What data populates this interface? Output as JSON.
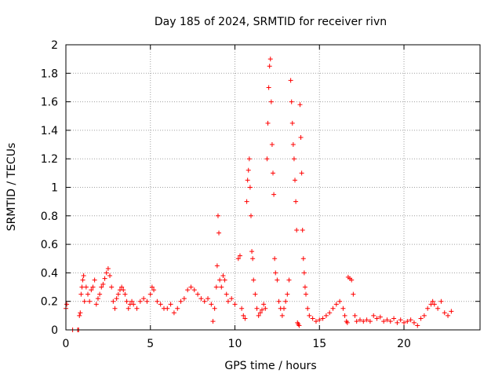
{
  "chart_data": {
    "type": "scatter",
    "title": "Day 185 of 2024, SRMTID for receiver rivn",
    "xlabel": "GPS time / hours",
    "ylabel": "SRMTID / TECUs",
    "xlim": [
      0,
      24.5
    ],
    "ylim": [
      0,
      2
    ],
    "x_ticks": [
      0,
      5,
      10,
      15,
      20
    ],
    "y_ticks": [
      0,
      0.2,
      0.4,
      0.6,
      0.8,
      1,
      1.2,
      1.4,
      1.6,
      1.8,
      2
    ],
    "x_tick_labels": [
      "0",
      "5",
      "10",
      "15",
      "20"
    ],
    "y_tick_labels": [
      "0",
      "0.2",
      "0.4",
      "0.6",
      "0.8",
      "1",
      "1.2",
      "1.4",
      "1.6",
      "1.8",
      "2"
    ],
    "grid": true,
    "marker": "+",
    "series": [
      {
        "name": "SRMTID",
        "color": "#ff0000",
        "points": [
          [
            0.0,
            0.15
          ],
          [
            0.05,
            0.18
          ],
          [
            0.4,
            0.0
          ],
          [
            0.7,
            0.0
          ],
          [
            0.75,
            0.0
          ],
          [
            0.8,
            0.1
          ],
          [
            0.85,
            0.12
          ],
          [
            0.9,
            0.25
          ],
          [
            0.95,
            0.3
          ],
          [
            1.0,
            0.35
          ],
          [
            1.05,
            0.38
          ],
          [
            1.1,
            0.2
          ],
          [
            1.2,
            0.3
          ],
          [
            1.3,
            0.25
          ],
          [
            1.4,
            0.2
          ],
          [
            1.5,
            0.28
          ],
          [
            1.6,
            0.3
          ],
          [
            1.7,
            0.35
          ],
          [
            1.8,
            0.18
          ],
          [
            1.9,
            0.22
          ],
          [
            2.0,
            0.25
          ],
          [
            2.1,
            0.3
          ],
          [
            2.2,
            0.32
          ],
          [
            2.3,
            0.36
          ],
          [
            2.4,
            0.4
          ],
          [
            2.5,
            0.43
          ],
          [
            2.6,
            0.38
          ],
          [
            2.7,
            0.3
          ],
          [
            2.8,
            0.2
          ],
          [
            2.9,
            0.15
          ],
          [
            3.0,
            0.22
          ],
          [
            3.1,
            0.25
          ],
          [
            3.2,
            0.28
          ],
          [
            3.3,
            0.3
          ],
          [
            3.4,
            0.28
          ],
          [
            3.5,
            0.25
          ],
          [
            3.6,
            0.2
          ],
          [
            3.7,
            0.15
          ],
          [
            3.8,
            0.18
          ],
          [
            3.9,
            0.2
          ],
          [
            4.0,
            0.18
          ],
          [
            4.2,
            0.15
          ],
          [
            4.4,
            0.2
          ],
          [
            4.6,
            0.22
          ],
          [
            4.8,
            0.2
          ],
          [
            5.0,
            0.25
          ],
          [
            5.1,
            0.3
          ],
          [
            5.2,
            0.28
          ],
          [
            5.4,
            0.2
          ],
          [
            5.6,
            0.18
          ],
          [
            5.8,
            0.15
          ],
          [
            6.0,
            0.15
          ],
          [
            6.2,
            0.18
          ],
          [
            6.4,
            0.12
          ],
          [
            6.6,
            0.15
          ],
          [
            6.8,
            0.2
          ],
          [
            7.0,
            0.22
          ],
          [
            7.2,
            0.28
          ],
          [
            7.4,
            0.3
          ],
          [
            7.6,
            0.28
          ],
          [
            7.8,
            0.25
          ],
          [
            8.0,
            0.22
          ],
          [
            8.2,
            0.2
          ],
          [
            8.4,
            0.22
          ],
          [
            8.6,
            0.18
          ],
          [
            8.7,
            0.06
          ],
          [
            8.8,
            0.15
          ],
          [
            8.9,
            0.3
          ],
          [
            8.95,
            0.45
          ],
          [
            9.0,
            0.8
          ],
          [
            9.05,
            0.68
          ],
          [
            9.1,
            0.35
          ],
          [
            9.2,
            0.3
          ],
          [
            9.3,
            0.38
          ],
          [
            9.4,
            0.35
          ],
          [
            9.5,
            0.25
          ],
          [
            9.6,
            0.2
          ],
          [
            9.8,
            0.22
          ],
          [
            10.0,
            0.18
          ],
          [
            10.2,
            0.5
          ],
          [
            10.3,
            0.52
          ],
          [
            10.4,
            0.15
          ],
          [
            10.5,
            0.1
          ],
          [
            10.6,
            0.08
          ],
          [
            10.7,
            0.9
          ],
          [
            10.75,
            1.05
          ],
          [
            10.8,
            1.12
          ],
          [
            10.85,
            1.2
          ],
          [
            10.9,
            1.0
          ],
          [
            10.95,
            0.8
          ],
          [
            11.0,
            0.55
          ],
          [
            11.05,
            0.5
          ],
          [
            11.1,
            0.35
          ],
          [
            11.2,
            0.25
          ],
          [
            11.3,
            0.15
          ],
          [
            11.4,
            0.1
          ],
          [
            11.5,
            0.12
          ],
          [
            11.6,
            0.14
          ],
          [
            11.7,
            0.18
          ],
          [
            11.8,
            0.15
          ],
          [
            11.9,
            1.2
          ],
          [
            11.95,
            1.45
          ],
          [
            12.0,
            1.7
          ],
          [
            12.05,
            1.85
          ],
          [
            12.1,
            1.9
          ],
          [
            12.15,
            1.6
          ],
          [
            12.2,
            1.3
          ],
          [
            12.25,
            1.1
          ],
          [
            12.3,
            0.95
          ],
          [
            12.35,
            0.5
          ],
          [
            12.4,
            0.4
          ],
          [
            12.5,
            0.35
          ],
          [
            12.6,
            0.2
          ],
          [
            12.7,
            0.15
          ],
          [
            12.8,
            0.1
          ],
          [
            12.9,
            0.15
          ],
          [
            13.0,
            0.2
          ],
          [
            13.1,
            0.25
          ],
          [
            13.2,
            0.35
          ],
          [
            13.3,
            1.75
          ],
          [
            13.35,
            1.6
          ],
          [
            13.4,
            1.45
          ],
          [
            13.45,
            1.3
          ],
          [
            13.5,
            1.2
          ],
          [
            13.55,
            1.05
          ],
          [
            13.6,
            0.9
          ],
          [
            13.65,
            0.7
          ],
          [
            13.7,
            0.05
          ],
          [
            13.75,
            0.04
          ],
          [
            13.8,
            0.03
          ],
          [
            13.85,
            1.58
          ],
          [
            13.9,
            1.35
          ],
          [
            13.95,
            1.1
          ],
          [
            14.0,
            0.7
          ],
          [
            14.05,
            0.5
          ],
          [
            14.1,
            0.4
          ],
          [
            14.15,
            0.3
          ],
          [
            14.2,
            0.25
          ],
          [
            14.3,
            0.15
          ],
          [
            14.4,
            0.1
          ],
          [
            14.6,
            0.08
          ],
          [
            14.8,
            0.06
          ],
          [
            15.0,
            0.07
          ],
          [
            15.2,
            0.08
          ],
          [
            15.4,
            0.1
          ],
          [
            15.6,
            0.12
          ],
          [
            15.8,
            0.15
          ],
          [
            16.0,
            0.18
          ],
          [
            16.2,
            0.2
          ],
          [
            16.4,
            0.15
          ],
          [
            16.5,
            0.1
          ],
          [
            16.6,
            0.06
          ],
          [
            16.65,
            0.05
          ],
          [
            16.7,
            0.37
          ],
          [
            16.8,
            0.36
          ],
          [
            16.9,
            0.35
          ],
          [
            17.0,
            0.25
          ],
          [
            17.1,
            0.1
          ],
          [
            17.2,
            0.06
          ],
          [
            17.4,
            0.07
          ],
          [
            17.6,
            0.06
          ],
          [
            17.8,
            0.07
          ],
          [
            18.0,
            0.06
          ],
          [
            18.2,
            0.1
          ],
          [
            18.4,
            0.08
          ],
          [
            18.6,
            0.09
          ],
          [
            18.8,
            0.06
          ],
          [
            19.0,
            0.07
          ],
          [
            19.2,
            0.06
          ],
          [
            19.4,
            0.08
          ],
          [
            19.6,
            0.05
          ],
          [
            19.8,
            0.07
          ],
          [
            20.0,
            0.05
          ],
          [
            20.2,
            0.06
          ],
          [
            20.4,
            0.07
          ],
          [
            20.6,
            0.05
          ],
          [
            20.8,
            0.03
          ],
          [
            21.0,
            0.08
          ],
          [
            21.2,
            0.1
          ],
          [
            21.4,
            0.15
          ],
          [
            21.6,
            0.18
          ],
          [
            21.7,
            0.2
          ],
          [
            21.8,
            0.18
          ],
          [
            22.0,
            0.15
          ],
          [
            22.2,
            0.2
          ],
          [
            22.4,
            0.12
          ],
          [
            22.6,
            0.1
          ],
          [
            22.8,
            0.13
          ]
        ]
      }
    ]
  }
}
